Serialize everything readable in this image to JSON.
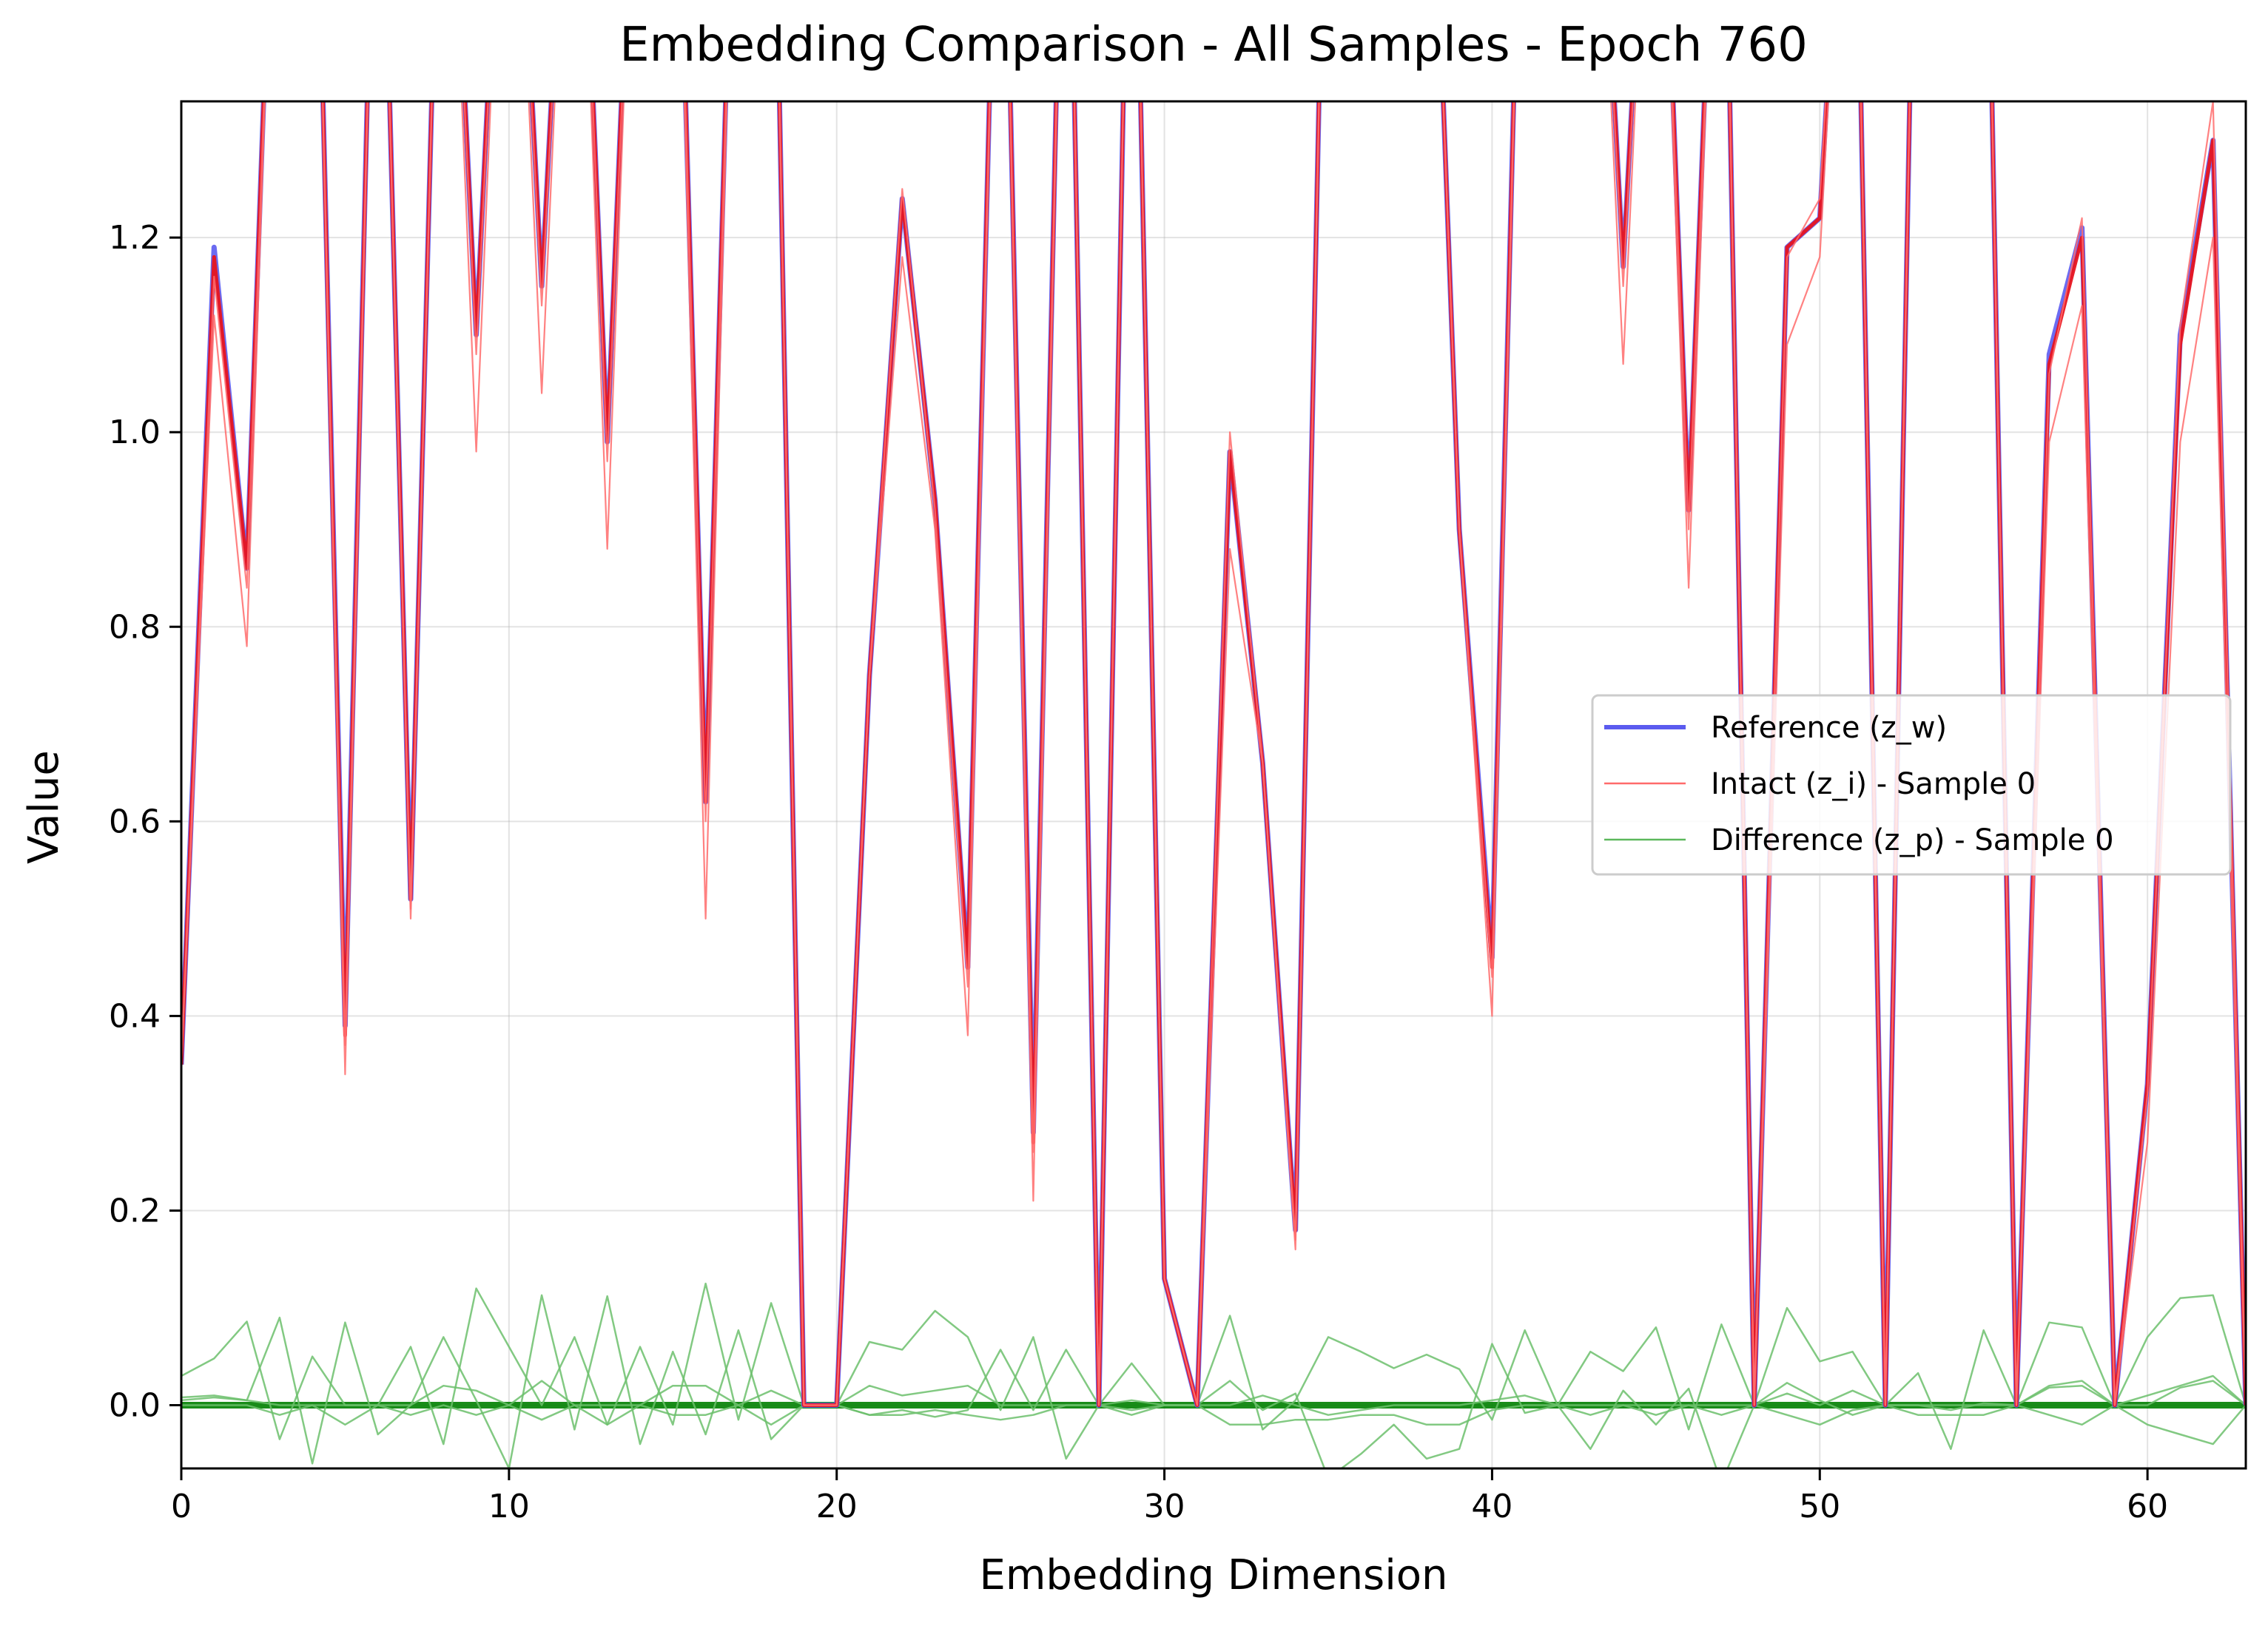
{
  "chart_data": {
    "type": "line",
    "title": "Embedding Comparison - All Samples - Epoch 760",
    "xlabel": "Embedding Dimension",
    "ylabel": "Value",
    "xlim": [
      0,
      63
    ],
    "ylim": [
      -0.065,
      1.34
    ],
    "x_ticks": [
      0,
      10,
      20,
      30,
      40,
      50,
      60
    ],
    "y_ticks": [
      0.0,
      0.2,
      0.4,
      0.6,
      0.8,
      1.0,
      1.2
    ],
    "x_tick_labels": [
      "0",
      "10",
      "20",
      "30",
      "40",
      "50",
      "60"
    ],
    "y_tick_labels": [
      "0.0",
      "0.2",
      "0.4",
      "0.6",
      "0.8",
      "1.0",
      "1.2"
    ],
    "grid": true,
    "legend_position": "center-right",
    "legend": [
      {
        "label": "Reference (z_w)",
        "color": "#5b5bef"
      },
      {
        "label": "Intact (z_i) - Sample 0",
        "color": "#ff6b6b"
      },
      {
        "label": "Difference (z_p) - Sample 0",
        "color": "#5cb85c"
      }
    ],
    "colors": {
      "reference": "#5b5bef",
      "intact": "#e8141e",
      "difference": "#008000",
      "difference_light": "#6cbf6c"
    },
    "reference": [
      0.35,
      1.19,
      0.86,
      1.8,
      1.8,
      0.39,
      1.8,
      0.52,
      1.8,
      1.1,
      1.8,
      1.15,
      1.8,
      0.99,
      1.8,
      1.8,
      0.62,
      1.8,
      1.8,
      0.0,
      0.0,
      0.75,
      1.24,
      0.93,
      0.45,
      1.8,
      0.28,
      1.8,
      0.0,
      1.8,
      0.13,
      0.0,
      0.98,
      0.66,
      0.18,
      1.8,
      1.8,
      1.8,
      1.8,
      0.9,
      0.46,
      1.8,
      1.8,
      1.8,
      1.17,
      1.8,
      0.92,
      1.8,
      0.0,
      1.19,
      1.22,
      1.8,
      0.0,
      1.8,
      1.8,
      1.8,
      0.0,
      1.08,
      1.21,
      0.0,
      0.33,
      1.1,
      1.3,
      0.0
    ],
    "intact_samples": [
      [
        0.35,
        1.18,
        0.86,
        1.8,
        1.8,
        0.38,
        1.8,
        0.52,
        1.8,
        1.1,
        1.8,
        1.15,
        1.8,
        0.99,
        1.8,
        1.8,
        0.62,
        1.8,
        1.8,
        0.0,
        0.0,
        0.75,
        1.24,
        0.93,
        0.45,
        1.8,
        0.27,
        1.8,
        0.0,
        1.8,
        0.13,
        0.0,
        0.98,
        0.66,
        0.18,
        1.8,
        1.8,
        1.8,
        1.8,
        0.9,
        0.45,
        1.8,
        1.8,
        1.8,
        1.17,
        1.8,
        0.92,
        1.8,
        0.0,
        1.19,
        1.22,
        1.8,
        0.0,
        1.8,
        1.8,
        1.8,
        0.0,
        1.07,
        1.2,
        0.0,
        0.33,
        1.09,
        1.3,
        0.0
      ],
      [
        0.35,
        1.12,
        0.78,
        1.8,
        1.8,
        0.34,
        1.8,
        0.5,
        1.8,
        0.98,
        1.8,
        1.04,
        1.8,
        0.88,
        1.8,
        1.8,
        0.5,
        1.8,
        1.8,
        0.0,
        0.0,
        0.75,
        1.18,
        0.9,
        0.38,
        1.8,
        0.21,
        1.8,
        0.0,
        1.8,
        0.13,
        0.0,
        0.88,
        0.66,
        0.16,
        1.8,
        1.8,
        1.8,
        1.8,
        0.9,
        0.4,
        1.8,
        1.8,
        1.8,
        1.07,
        1.8,
        0.84,
        1.8,
        0.0,
        1.09,
        1.18,
        1.8,
        0.0,
        1.8,
        1.8,
        1.8,
        0.0,
        0.99,
        1.13,
        0.0,
        0.27,
        0.99,
        1.2,
        0.0
      ],
      [
        0.35,
        1.16,
        0.84,
        1.8,
        1.8,
        0.37,
        1.8,
        0.51,
        1.8,
        1.08,
        1.8,
        1.13,
        1.8,
        0.97,
        1.8,
        1.8,
        0.6,
        1.8,
        1.8,
        0.0,
        0.0,
        0.75,
        1.25,
        0.92,
        0.43,
        1.8,
        0.26,
        1.8,
        0.0,
        1.8,
        0.13,
        0.0,
        1.0,
        0.66,
        0.17,
        1.8,
        1.8,
        1.8,
        1.8,
        0.9,
        0.44,
        1.8,
        1.8,
        1.8,
        1.15,
        1.8,
        0.9,
        1.8,
        0.0,
        1.18,
        1.24,
        1.8,
        0.0,
        1.8,
        1.8,
        1.8,
        0.0,
        1.06,
        1.22,
        0.0,
        0.32,
        1.11,
        1.34,
        0.0
      ]
    ],
    "difference_samples": [
      [
        0.0,
        0.0,
        0.0,
        0.0,
        0.0,
        0.0,
        0.0,
        0.0,
        0.0,
        0.0,
        0.0,
        0.0,
        0.0,
        0.0,
        0.0,
        0.0,
        0.0,
        0.0,
        0.0,
        0.0,
        0.0,
        0.0,
        0.0,
        0.0,
        0.0,
        0.0,
        0.0,
        0.0,
        0.0,
        0.0,
        0.0,
        0.0,
        0.0,
        0.0,
        0.0,
        0.0,
        0.0,
        0.0,
        0.0,
        0.0,
        0.0,
        0.0,
        0.0,
        0.0,
        0.0,
        0.0,
        0.0,
        0.0,
        0.0,
        0.0,
        0.0,
        0.0,
        0.0,
        0.0,
        0.0,
        0.0,
        0.0,
        0.0,
        0.0,
        0.0,
        0.0,
        0.0,
        0.0,
        0.0
      ],
      [
        0.03,
        0.048,
        0.086,
        -0.035,
        0.05,
        0.0,
        0.0,
        0.06,
        -0.04,
        0.12,
        0.06,
        0.0,
        0.07,
        -0.02,
        0.06,
        -0.02,
        0.125,
        -0.015,
        0.105,
        0.0,
        0.0,
        0.065,
        0.057,
        0.097,
        0.07,
        -0.005,
        0.07,
        -0.055,
        0.0,
        0.043,
        0.0,
        0.0,
        0.092,
        -0.025,
        0.005,
        0.07,
        0.055,
        0.038,
        0.052,
        0.037,
        -0.015,
        0.077,
        0.0,
        0.055,
        0.035,
        0.08,
        -0.025,
        0.083,
        0.0,
        0.1,
        0.045,
        0.055,
        0.0,
        0.033,
        -0.045,
        0.077,
        0.0,
        0.085,
        0.08,
        0.0,
        0.07,
        0.11,
        0.113,
        0.0
      ],
      [
        0.005,
        0.008,
        0.005,
        0.09,
        -0.06,
        0.085,
        -0.03,
        0.0,
        0.07,
        0.005,
        -0.065,
        0.113,
        -0.025,
        0.112,
        -0.04,
        0.055,
        -0.03,
        0.077,
        -0.035,
        0.0,
        0.0,
        -0.01,
        -0.005,
        -0.012,
        -0.005,
        0.057,
        -0.005,
        0.057,
        0.0,
        -0.005,
        0.0,
        0.0,
        0.025,
        -0.005,
        0.012,
        -0.075,
        -0.05,
        -0.02,
        -0.055,
        -0.045,
        0.063,
        -0.008,
        0.0,
        -0.045,
        0.015,
        -0.02,
        0.017,
        -0.08,
        0.0,
        0.023,
        0.005,
        -0.01,
        0.0,
        0.0,
        -0.005,
        0.002,
        0.0,
        0.018,
        0.02,
        0.0,
        0.0,
        0.018,
        0.025,
        0.0
      ],
      [
        0.008,
        0.01,
        0.005,
        0.0,
        0.0,
        0.0,
        0.0,
        0.0,
        0.02,
        0.015,
        0.0,
        0.025,
        0.0,
        0.0,
        0.0,
        0.02,
        0.02,
        0.0,
        0.015,
        0.0,
        0.0,
        0.02,
        0.01,
        0.015,
        0.02,
        0.0,
        0.0,
        0.0,
        0.0,
        0.005,
        0.0,
        0.0,
        0.0,
        0.01,
        0.0,
        -0.01,
        -0.005,
        0.0,
        0.0,
        0.0,
        0.005,
        0.01,
        0.0,
        0.0,
        0.0,
        0.0,
        0.0,
        0.0,
        0.0,
        0.012,
        0.0,
        0.015,
        0.0,
        0.0,
        0.0,
        0.0,
        0.0,
        0.02,
        0.025,
        0.0,
        0.01,
        0.02,
        0.03,
        0.0
      ],
      [
        0.0,
        0.0,
        0.0,
        -0.01,
        0.0,
        -0.02,
        0.0,
        -0.01,
        0.0,
        -0.01,
        0.0,
        -0.015,
        0.0,
        -0.02,
        0.0,
        -0.01,
        -0.01,
        0.0,
        -0.02,
        0.0,
        0.0,
        -0.01,
        -0.01,
        -0.005,
        -0.01,
        -0.015,
        -0.01,
        0.0,
        0.0,
        -0.01,
        0.0,
        0.0,
        -0.02,
        -0.02,
        -0.015,
        -0.015,
        -0.01,
        -0.01,
        -0.02,
        -0.02,
        -0.005,
        0.0,
        0.0,
        -0.01,
        0.0,
        -0.01,
        0.0,
        -0.01,
        0.0,
        -0.01,
        -0.02,
        -0.005,
        0.0,
        -0.01,
        -0.01,
        -0.01,
        0.0,
        -0.01,
        -0.02,
        0.0,
        -0.02,
        -0.03,
        -0.04,
        0.0
      ]
    ]
  }
}
